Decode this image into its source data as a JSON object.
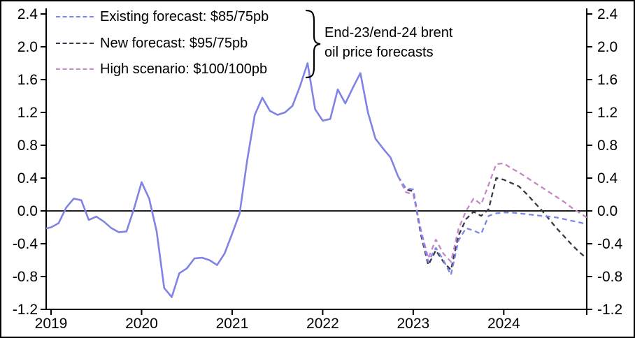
{
  "chart_data": {
    "type": "line",
    "title": "",
    "x_unit": "month",
    "x_start": "2019-01",
    "x_end": "2024-12",
    "xtick_labels": [
      "2019",
      "2020",
      "2021",
      "2022",
      "2023",
      "2024"
    ],
    "ytick_labels": [
      "2.4",
      "2.0",
      "1.6",
      "1.2",
      "0.8",
      "0.4",
      "0.0",
      "-0.4",
      "-0.8",
      "-1.2"
    ],
    "ylim": [
      -1.2,
      2.4
    ],
    "ytick_step": 0.4,
    "grid": false,
    "zero_line": true,
    "legend_position": "top-left",
    "series": [
      {
        "name": "history",
        "label": "",
        "style": "solid",
        "color": "#8083e3",
        "start_month_index": -1,
        "values": [
          -0.22,
          -0.2,
          -0.15,
          0.04,
          0.15,
          0.13,
          -0.11,
          -0.07,
          -0.13,
          -0.21,
          -0.26,
          -0.25,
          0.03,
          0.35,
          0.15,
          -0.25,
          -0.94,
          -1.05,
          -0.76,
          -0.7,
          -0.58,
          -0.57,
          -0.6,
          -0.66,
          -0.52,
          -0.28,
          -0.03,
          0.62,
          1.17,
          1.38,
          1.22,
          1.17,
          1.2,
          1.28,
          1.52,
          1.8,
          1.24,
          1.1,
          1.12,
          1.48,
          1.31,
          1.5,
          1.68,
          1.2,
          0.88,
          0.76,
          0.65,
          0.42
        ]
      },
      {
        "name": "existing-forecast",
        "label": "Existing forecast: $85/75pb",
        "style": "dashed",
        "color": "#7b85ea",
        "start_month_index": 46,
        "values": [
          0.42,
          0.28,
          0.26,
          -0.25,
          -0.62,
          -0.45,
          -0.6,
          -0.78,
          -0.36,
          -0.21,
          -0.24,
          -0.28,
          -0.06,
          -0.03,
          -0.02,
          -0.02,
          -0.03,
          -0.04,
          -0.05,
          -0.06,
          -0.07,
          -0.08,
          -0.1,
          -0.12,
          -0.14,
          -0.16
        ]
      },
      {
        "name": "new-forecast",
        "label": "New forecast: $95/75pb",
        "style": "dashed",
        "color": "#373747",
        "start_month_index": 46,
        "values": [
          0.42,
          0.26,
          0.24,
          -0.28,
          -0.66,
          -0.48,
          -0.62,
          -0.72,
          -0.3,
          -0.1,
          -0.01,
          -0.06,
          0.02,
          0.4,
          0.38,
          0.34,
          0.3,
          0.21,
          0.11,
          0.01,
          -0.1,
          -0.21,
          -0.31,
          -0.41,
          -0.5,
          -0.58
        ]
      },
      {
        "name": "high-scenario",
        "label": "High scenario: $100/100pb",
        "style": "dashed",
        "color": "#c687c6",
        "start_month_index": 46,
        "values": [
          0.42,
          0.23,
          0.2,
          -0.22,
          -0.58,
          -0.35,
          -0.52,
          -0.62,
          -0.22,
          0.0,
          0.15,
          0.08,
          0.32,
          0.57,
          0.58,
          0.52,
          0.47,
          0.41,
          0.35,
          0.29,
          0.23,
          0.17,
          0.11,
          0.04,
          -0.02,
          -0.08
        ]
      }
    ]
  },
  "legend": {
    "items": [
      {
        "label": "Existing forecast: $85/75pb",
        "color": "#7b85ea"
      },
      {
        "label": "New forecast: $95/75pb",
        "color": "#373747"
      },
      {
        "label": "High scenario: $100/100pb",
        "color": "#c687c6"
      }
    ]
  },
  "annotation": {
    "line1": "End-23/end-24 brent",
    "line2": "oil price forecasts"
  }
}
